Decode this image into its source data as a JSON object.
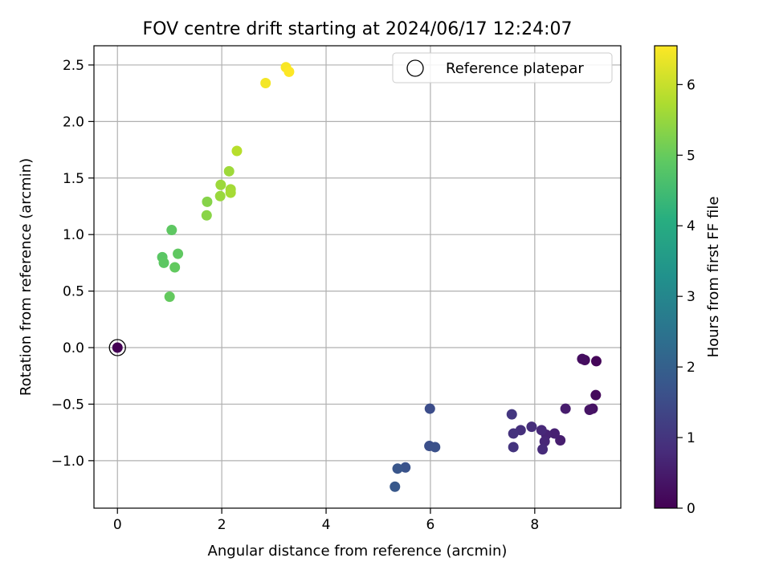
{
  "chart_data": {
    "type": "scatter",
    "title": "FOV centre drift starting at 2024/06/17 12:24:07",
    "xlabel": "Angular distance from reference (arcmin)",
    "ylabel": "Rotation from reference (arcmin)",
    "xlim": [
      -0.45,
      9.65
    ],
    "ylim": [
      -1.42,
      2.67
    ],
    "xticks": [
      0,
      2,
      4,
      6,
      8
    ],
    "yticks": [
      -1.0,
      -0.5,
      0.0,
      0.5,
      1.0,
      1.5,
      2.0,
      2.5
    ],
    "xtick_labels": [
      "0",
      "2",
      "4",
      "6",
      "8"
    ],
    "ytick_labels": [
      "−1.0",
      "−0.5",
      "0.0",
      "0.5",
      "1.0",
      "1.5",
      "2.0",
      "2.5"
    ],
    "grid": true,
    "legend": {
      "position": "upper right",
      "entries": [
        "Reference platepar"
      ]
    },
    "colorbar": {
      "label": "Hours from first FF file",
      "colormap": "viridis",
      "range": [
        0,
        6.55
      ],
      "ticks": [
        0,
        1,
        2,
        3,
        4,
        5,
        6
      ],
      "tick_labels": [
        "0",
        "1",
        "2",
        "3",
        "4",
        "5",
        "6"
      ]
    },
    "reference_point": {
      "x": 0,
      "y": 0,
      "c": 0
    },
    "points": [
      {
        "x": 9.18,
        "y": -0.12,
        "c": 0.1
      },
      {
        "x": 9.17,
        "y": -0.42,
        "c": 0.15
      },
      {
        "x": 8.96,
        "y": -0.11,
        "c": 0.2
      },
      {
        "x": 8.91,
        "y": -0.1,
        "c": 0.25
      },
      {
        "x": 9.11,
        "y": -0.54,
        "c": 0.3
      },
      {
        "x": 9.05,
        "y": -0.55,
        "c": 0.35
      },
      {
        "x": 8.59,
        "y": -0.54,
        "c": 0.5
      },
      {
        "x": 8.49,
        "y": -0.82,
        "c": 0.55
      },
      {
        "x": 8.38,
        "y": -0.76,
        "c": 0.6
      },
      {
        "x": 8.22,
        "y": -0.77,
        "c": 0.65
      },
      {
        "x": 8.19,
        "y": -0.83,
        "c": 0.7
      },
      {
        "x": 8.13,
        "y": -0.73,
        "c": 0.75
      },
      {
        "x": 8.15,
        "y": -0.9,
        "c": 0.8
      },
      {
        "x": 7.94,
        "y": -0.7,
        "c": 0.85
      },
      {
        "x": 7.73,
        "y": -0.73,
        "c": 0.9
      },
      {
        "x": 7.59,
        "y": -0.76,
        "c": 0.95
      },
      {
        "x": 7.59,
        "y": -0.88,
        "c": 1.0
      },
      {
        "x": 7.56,
        "y": -0.59,
        "c": 1.05
      },
      {
        "x": 5.99,
        "y": -0.54,
        "c": 1.55
      },
      {
        "x": 5.98,
        "y": -0.87,
        "c": 1.6
      },
      {
        "x": 6.09,
        "y": -0.88,
        "c": 1.65
      },
      {
        "x": 5.52,
        "y": -1.06,
        "c": 1.7
      },
      {
        "x": 5.37,
        "y": -1.07,
        "c": 1.75
      },
      {
        "x": 5.32,
        "y": -1.23,
        "c": 1.8
      },
      {
        "x": 0.86,
        "y": 0.8,
        "c": 4.85
      },
      {
        "x": 0.89,
        "y": 0.75,
        "c": 4.88
      },
      {
        "x": 1.04,
        "y": 1.04,
        "c": 4.9
      },
      {
        "x": 1.16,
        "y": 0.83,
        "c": 4.92
      },
      {
        "x": 1.1,
        "y": 0.71,
        "c": 4.95
      },
      {
        "x": 1.0,
        "y": 0.45,
        "c": 4.97
      },
      {
        "x": 1.72,
        "y": 1.29,
        "c": 5.35
      },
      {
        "x": 1.71,
        "y": 1.17,
        "c": 5.38
      },
      {
        "x": 1.97,
        "y": 1.34,
        "c": 5.55
      },
      {
        "x": 1.98,
        "y": 1.44,
        "c": 5.58
      },
      {
        "x": 2.14,
        "y": 1.56,
        "c": 5.6
      },
      {
        "x": 2.17,
        "y": 1.4,
        "c": 5.65
      },
      {
        "x": 2.17,
        "y": 1.37,
        "c": 5.68
      },
      {
        "x": 2.29,
        "y": 1.74,
        "c": 5.85
      },
      {
        "x": 2.84,
        "y": 2.34,
        "c": 6.45
      },
      {
        "x": 3.23,
        "y": 2.48,
        "c": 6.5
      },
      {
        "x": 3.29,
        "y": 2.44,
        "c": 6.55
      }
    ]
  }
}
